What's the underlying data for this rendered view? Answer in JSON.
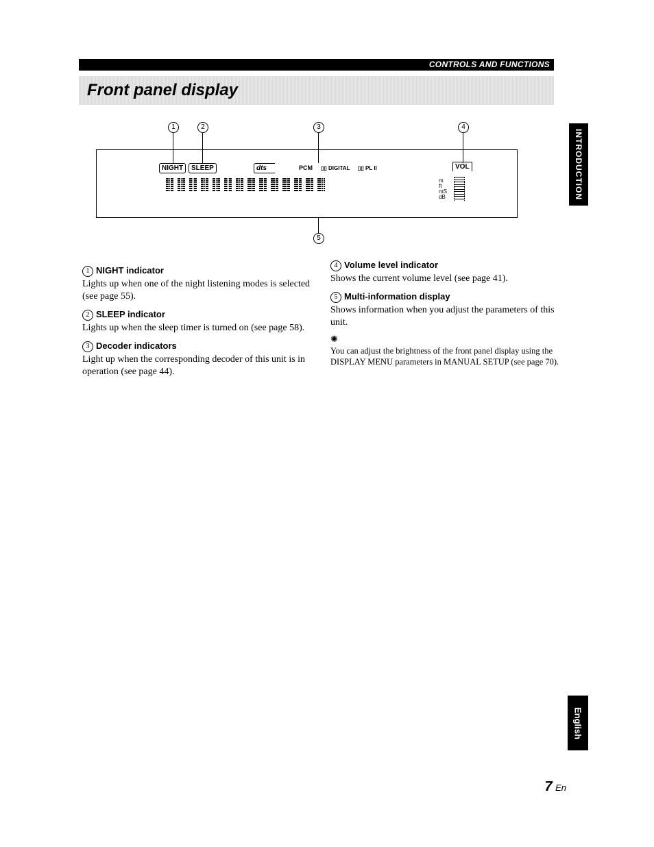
{
  "header": {
    "breadcrumb": "CONTROLS AND FUNCTIONS"
  },
  "section_title": "Front panel display",
  "tabs": {
    "intro": "INTRODUCTION",
    "lang": "English"
  },
  "diagram": {
    "callouts": [
      "1",
      "2",
      "3",
      "4",
      "5"
    ],
    "indicators": {
      "night": "NIGHT",
      "sleep": "SLEEP",
      "dts": "dts",
      "pcm": "PCM",
      "dd": "▯▯ DIGITAL",
      "pl2": "▯▯ PL II",
      "vol": "VOL"
    },
    "units": [
      "m",
      "ft",
      "mS",
      "dB"
    ]
  },
  "left_items": [
    {
      "num": "1",
      "title": "NIGHT indicator",
      "body": "Lights up when one of the night listening modes is selected (see page 55)."
    },
    {
      "num": "2",
      "title": "SLEEP indicator",
      "body": "Lights up when the sleep timer is turned on (see page 58)."
    },
    {
      "num": "3",
      "title": "Decoder indicators",
      "body": "Light up when the corresponding decoder of this unit is in operation (see page 44)."
    }
  ],
  "right_items": [
    {
      "num": "4",
      "title": "Volume level indicator",
      "body": "Shows the current volume level (see page 41)."
    },
    {
      "num": "5",
      "title": "Multi-information display",
      "body": "Shows information when you adjust the parameters of this unit."
    }
  ],
  "tip": "You can adjust the brightness of the front panel display using the DISPLAY MENU parameters in MANUAL SETUP (see page 70).",
  "page": {
    "num": "7",
    "lang": "En"
  }
}
